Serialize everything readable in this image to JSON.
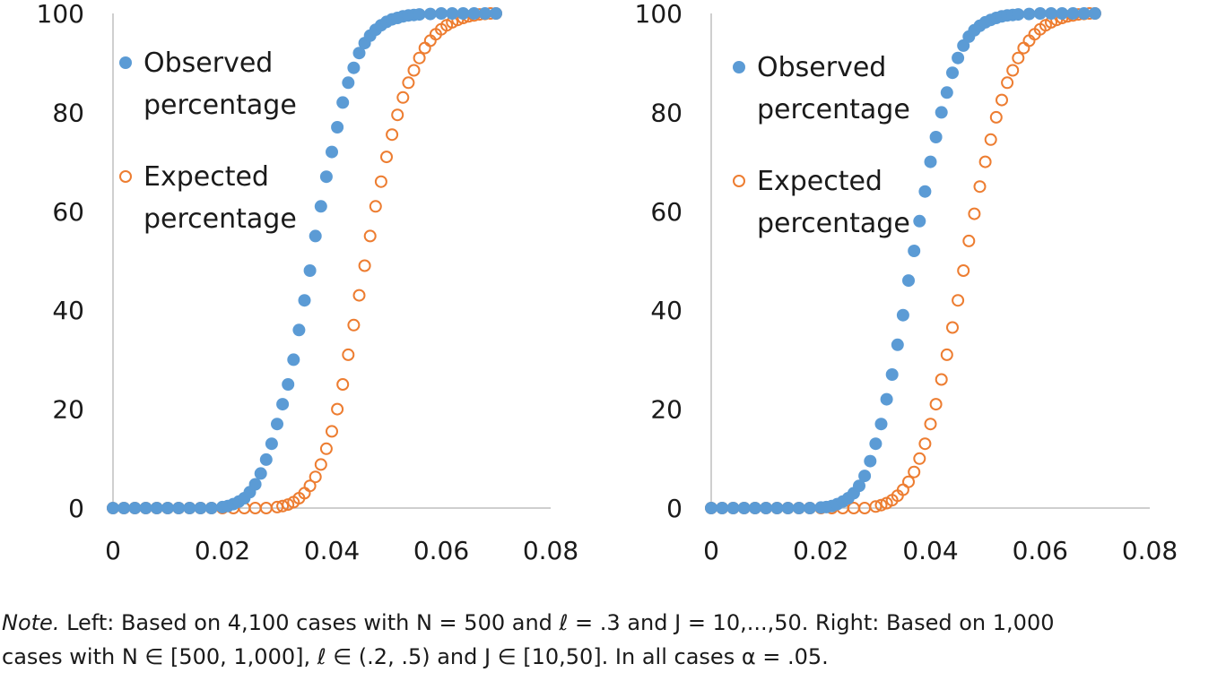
{
  "chart_data": [
    {
      "type": "scatter",
      "title": "",
      "xlabel": "",
      "ylabel": "",
      "xlim": [
        0,
        0.08
      ],
      "ylim": [
        0,
        100
      ],
      "x_ticks": [
        "0",
        "0.02",
        "0.04",
        "0.06",
        "0.08"
      ],
      "y_ticks": [
        "0",
        "20",
        "40",
        "60",
        "80",
        "100"
      ],
      "legend": "top-left",
      "series": [
        {
          "name": "Observed percentage",
          "marker": "filled-circle",
          "color": "#5b9bd5",
          "x": [
            0,
            0.002,
            0.004,
            0.006,
            0.008,
            0.01,
            0.012,
            0.014,
            0.016,
            0.018,
            0.02,
            0.021,
            0.022,
            0.023,
            0.024,
            0.025,
            0.026,
            0.027,
            0.028,
            0.029,
            0.03,
            0.031,
            0.032,
            0.033,
            0.034,
            0.035,
            0.036,
            0.037,
            0.038,
            0.039,
            0.04,
            0.041,
            0.042,
            0.043,
            0.044,
            0.045,
            0.046,
            0.047,
            0.048,
            0.049,
            0.05,
            0.051,
            0.052,
            0.053,
            0.054,
            0.055,
            0.056,
            0.058,
            0.06,
            0.062,
            0.064,
            0.066,
            0.068,
            0.07
          ],
          "y": [
            0,
            0,
            0,
            0,
            0,
            0,
            0,
            0,
            0,
            0,
            0.2,
            0.4,
            0.8,
            1.3,
            2.0,
            3.2,
            4.8,
            7.0,
            9.8,
            13,
            17,
            21,
            25,
            30,
            36,
            42,
            48,
            55,
            61,
            67,
            72,
            77,
            82,
            86,
            89,
            92,
            94,
            95.5,
            96.7,
            97.6,
            98.3,
            98.8,
            99.1,
            99.4,
            99.6,
            99.7,
            99.8,
            99.9,
            100,
            100,
            100,
            100,
            100,
            100
          ]
        },
        {
          "name": "Expected percentage",
          "marker": "open-circle",
          "color": "#ed7d31",
          "x": [
            0,
            0.002,
            0.004,
            0.006,
            0.008,
            0.01,
            0.012,
            0.014,
            0.016,
            0.018,
            0.02,
            0.022,
            0.024,
            0.026,
            0.028,
            0.03,
            0.031,
            0.032,
            0.033,
            0.034,
            0.035,
            0.036,
            0.037,
            0.038,
            0.039,
            0.04,
            0.041,
            0.042,
            0.043,
            0.044,
            0.045,
            0.046,
            0.047,
            0.048,
            0.049,
            0.05,
            0.051,
            0.052,
            0.053,
            0.054,
            0.055,
            0.056,
            0.057,
            0.058,
            0.059,
            0.06,
            0.061,
            0.062,
            0.063,
            0.064,
            0.065,
            0.066,
            0.067,
            0.068,
            0.069,
            0.07
          ],
          "y": [
            0,
            0,
            0,
            0,
            0,
            0,
            0,
            0,
            0,
            0,
            0,
            0,
            0,
            0,
            0,
            0.2,
            0.4,
            0.7,
            1.2,
            2.0,
            3.0,
            4.5,
            6.3,
            8.8,
            12,
            15.5,
            20,
            25,
            31,
            37,
            43,
            49,
            55,
            61,
            66,
            71,
            75.5,
            79.5,
            83,
            86,
            88.5,
            91,
            93,
            94.5,
            95.8,
            96.8,
            97.6,
            98.2,
            98.7,
            99.1,
            99.4,
            99.6,
            99.8,
            99.9,
            100,
            100
          ]
        }
      ]
    },
    {
      "type": "scatter",
      "title": "",
      "xlabel": "",
      "ylabel": "",
      "xlim": [
        0,
        0.08
      ],
      "ylim": [
        0,
        100
      ],
      "x_ticks": [
        "0",
        "0.02",
        "0.04",
        "0.06",
        "0.08"
      ],
      "y_ticks": [
        "0",
        "20",
        "40",
        "60",
        "80",
        "100"
      ],
      "legend": "top-left",
      "series": [
        {
          "name": "Observed percentage",
          "marker": "filled-circle",
          "color": "#5b9bd5",
          "x": [
            0,
            0.002,
            0.004,
            0.006,
            0.008,
            0.01,
            0.012,
            0.014,
            0.016,
            0.018,
            0.02,
            0.021,
            0.022,
            0.023,
            0.024,
            0.025,
            0.026,
            0.027,
            0.028,
            0.029,
            0.03,
            0.031,
            0.032,
            0.033,
            0.034,
            0.035,
            0.036,
            0.037,
            0.038,
            0.039,
            0.04,
            0.041,
            0.042,
            0.043,
            0.044,
            0.045,
            0.046,
            0.047,
            0.048,
            0.049,
            0.05,
            0.051,
            0.052,
            0.053,
            0.054,
            0.055,
            0.056,
            0.058,
            0.06,
            0.062,
            0.064,
            0.066,
            0.068,
            0.07
          ],
          "y": [
            0,
            0,
            0,
            0,
            0,
            0,
            0,
            0,
            0,
            0,
            0.1,
            0.2,
            0.4,
            0.8,
            1.3,
            2.0,
            3.0,
            4.5,
            6.5,
            9.5,
            13,
            17,
            22,
            27,
            33,
            39,
            46,
            52,
            58,
            64,
            70,
            75,
            80,
            84,
            88,
            91,
            93.5,
            95.3,
            96.6,
            97.5,
            98.2,
            98.7,
            99.1,
            99.4,
            99.6,
            99.7,
            99.8,
            99.9,
            100,
            100,
            100,
            100,
            100,
            100
          ]
        },
        {
          "name": "Expected percentage",
          "marker": "open-circle",
          "color": "#ed7d31",
          "x": [
            0,
            0.002,
            0.004,
            0.006,
            0.008,
            0.01,
            0.012,
            0.014,
            0.016,
            0.018,
            0.02,
            0.022,
            0.024,
            0.026,
            0.028,
            0.03,
            0.031,
            0.032,
            0.033,
            0.034,
            0.035,
            0.036,
            0.037,
            0.038,
            0.039,
            0.04,
            0.041,
            0.042,
            0.043,
            0.044,
            0.045,
            0.046,
            0.047,
            0.048,
            0.049,
            0.05,
            0.051,
            0.052,
            0.053,
            0.054,
            0.055,
            0.056,
            0.057,
            0.058,
            0.059,
            0.06,
            0.061,
            0.062,
            0.063,
            0.064,
            0.065,
            0.066,
            0.067,
            0.068,
            0.069,
            0.07
          ],
          "y": [
            0,
            0,
            0,
            0,
            0,
            0,
            0,
            0,
            0,
            0,
            0,
            0,
            0,
            0,
            0,
            0.3,
            0.6,
            1.0,
            1.6,
            2.5,
            3.7,
            5.3,
            7.3,
            10,
            13,
            17,
            21,
            26,
            31,
            36.5,
            42,
            48,
            54,
            59.5,
            65,
            70,
            74.5,
            79,
            82.5,
            86,
            88.5,
            91,
            93,
            94.5,
            95.8,
            96.8,
            97.6,
            98.2,
            98.7,
            99.1,
            99.4,
            99.6,
            99.8,
            99.9,
            100,
            100
          ]
        }
      ]
    }
  ],
  "legend_labels": {
    "observed": [
      "Observed",
      "percentage"
    ],
    "expected": [
      "Expected",
      "percentage"
    ]
  },
  "note": {
    "label": "Note.",
    "line1": "Left: Based on 4,100 cases with N = 500 and ℓ = .3 and J = 10,...,50. Right: Based on 1,000",
    "line2": "cases with N ∈ [500, 1,000], ℓ ∈ (.2, .5) and J ∈ [10,50]. In all cases α = .05."
  }
}
